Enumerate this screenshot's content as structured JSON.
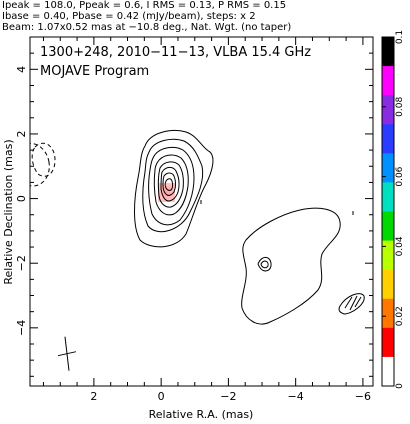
{
  "header": {
    "line1": "Ipeak = 108.0, Ppeak = 0.6, I RMS = 0.13, P RMS = 0.15",
    "line2": "Ibase = 0.40, Pbase = 0.42 (mJy/beam), steps: x 2",
    "line3": "Beam: 1.07x0.52 mas at −10.8 deg., Nat. Wgt. (no taper)"
  },
  "chart_data": {
    "type": "contour",
    "title": "1300+248, 2010−11−13, VLBA 15.4 GHz",
    "subtitle": "MOJAVE Program",
    "xlabel": "Relative R.A. (mas)",
    "ylabel": "Relative Declination (mas)",
    "xlim": [
      3.9,
      -6.3
    ],
    "ylim": [
      -5.8,
      5.0
    ],
    "x_ticks": [
      2,
      0,
      -2,
      -4,
      -6
    ],
    "x_tick_labels": [
      "2",
      "0",
      "−2",
      "−4",
      "−6"
    ],
    "y_ticks": [
      4,
      2,
      0,
      -2,
      -4
    ],
    "y_tick_labels": [
      "4",
      "2",
      "0",
      "−2",
      "−4"
    ],
    "core": {
      "x": 0.0,
      "y": 0.0,
      "peak_mJy_per_beam": 108.0
    },
    "contour_levels_mJy_per_beam": [
      0.4,
      0.8,
      1.6,
      3.2,
      6.4,
      12.8,
      25.6,
      51.2
    ],
    "colorbar": {
      "min": 0,
      "max": 0.1,
      "ticks": [
        0,
        0.02,
        0.04,
        0.06,
        0.08,
        0.1
      ],
      "tick_labels": [
        "0",
        "0.02",
        "0.04",
        "0.06",
        "0.08",
        "0.1"
      ],
      "colors": [
        "#ffffff",
        "#ff0000",
        "#ff7700",
        "#ffd000",
        "#b8ff00",
        "#00d800",
        "#00e0c0",
        "#0090ff",
        "#2a3cff",
        "#8a2be2",
        "#ff00ff",
        "#000000"
      ]
    },
    "beam": {
      "major_mas": 1.07,
      "minor_mas": 0.52,
      "pa_deg": -10.8,
      "x": 3.85,
      "y": 1.05
    },
    "cross": {
      "x": 2.8,
      "y": -4.8
    }
  }
}
